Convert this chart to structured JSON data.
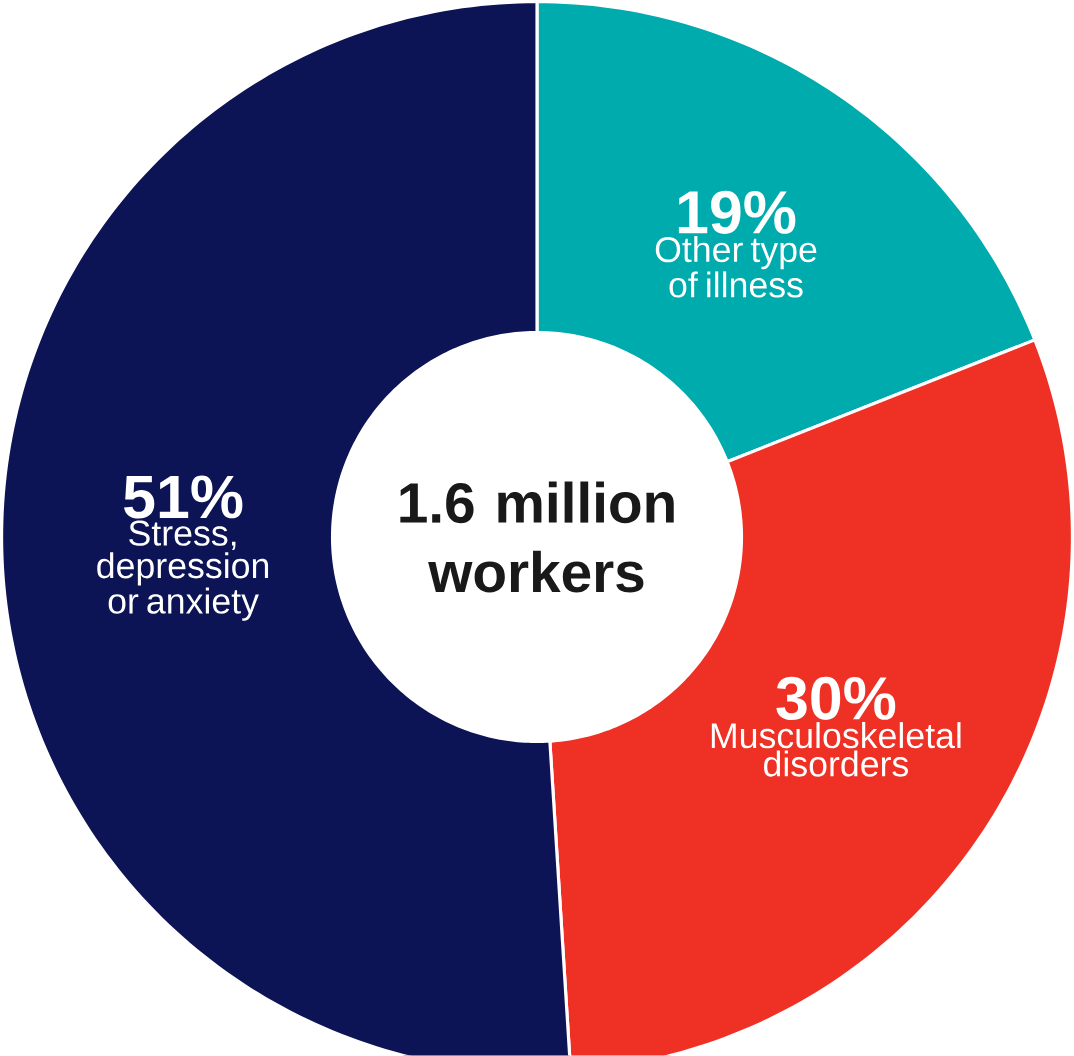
{
  "chart_data": {
    "type": "donut",
    "categories": [
      "Other type of illness",
      "Musculoskeletal disorders",
      "Stress, depression or anxiety"
    ],
    "values": [
      19,
      30,
      51
    ],
    "colors": [
      "#00abae",
      "#ee3124",
      "#0d1456"
    ],
    "value_labels": [
      "19%",
      "30%",
      "51%"
    ],
    "annotations": [
      "1.6 million workers"
    ]
  }
}
